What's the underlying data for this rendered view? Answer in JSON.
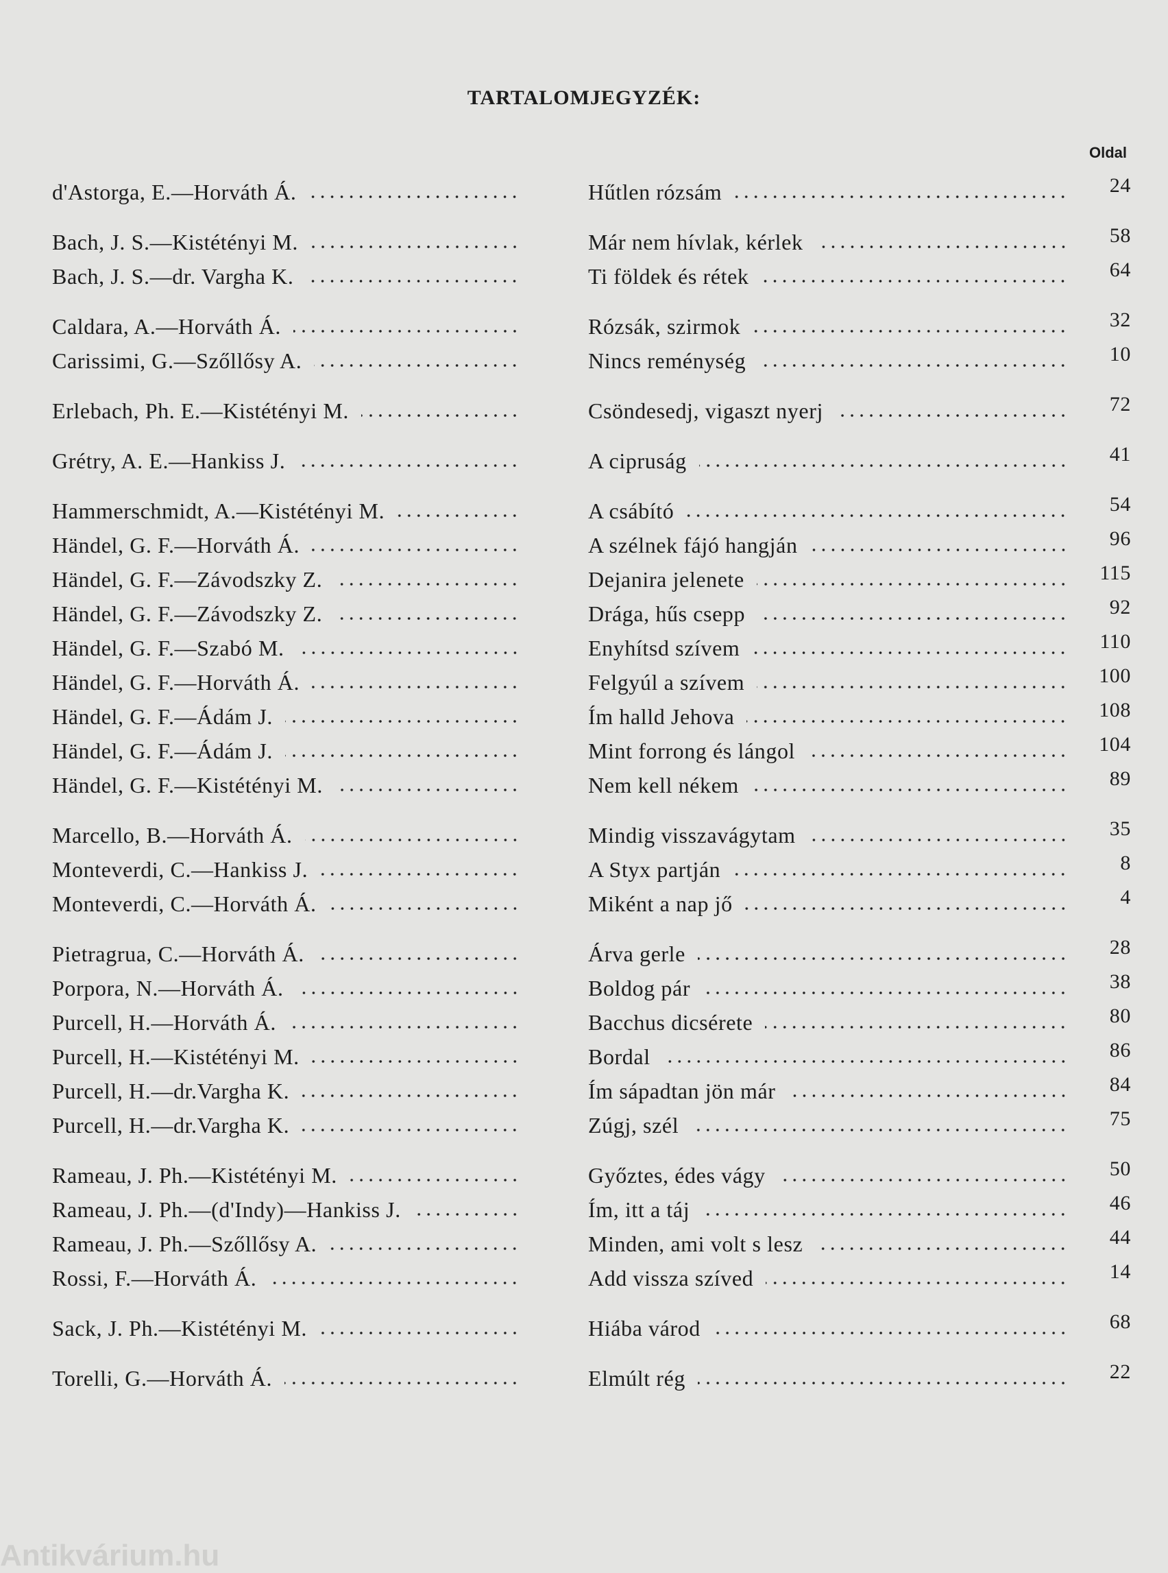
{
  "header": {
    "title": "TARTALOMJEGYZÉK:",
    "page_column": "Oldal"
  },
  "groups": [
    {
      "entries": [
        {
          "author": "d'Astorga, E.—Horváth Á.",
          "title": "Hűtlen rózsám",
          "page": "24"
        }
      ]
    },
    {
      "entries": [
        {
          "author": "Bach, J. S.—Kistétényi M.",
          "title": "Már nem hívlak, kérlek",
          "page": "58"
        },
        {
          "author": "Bach, J. S.—dr. Vargha K.",
          "title": "Ti földek és rétek",
          "page": "64"
        }
      ]
    },
    {
      "entries": [
        {
          "author": "Caldara, A.—Horváth Á.",
          "title": "Rózsák, szirmok",
          "page": "32"
        },
        {
          "author": "Carissimi, G.—Szőllősy A.",
          "title": "Nincs reménység",
          "page": "10"
        }
      ]
    },
    {
      "entries": [
        {
          "author": "Erlebach, Ph. E.—Kistétényi M.",
          "title": "Csöndesedj, vigaszt nyerj",
          "page": "72"
        }
      ]
    },
    {
      "entries": [
        {
          "author": "Grétry, A. E.—Hankiss J.",
          "title": "A cipruság",
          "page": "41"
        }
      ]
    },
    {
      "entries": [
        {
          "author": "Hammerschmidt, A.—Kistétényi M.",
          "title": "A csábító",
          "page": "54"
        },
        {
          "author": "Händel, G. F.—Horváth Á.",
          "title": "A szélnek fájó hangján",
          "page": "96"
        },
        {
          "author": "Händel, G. F.—Závodszky Z.",
          "title": "Dejanira jelenete",
          "page": "115"
        },
        {
          "author": "Händel, G. F.—Závodszky Z.",
          "title": "Drága, hűs csepp",
          "page": "92"
        },
        {
          "author": "Händel, G. F.—Szabó M.",
          "title": "Enyhítsd szívem",
          "page": "110"
        },
        {
          "author": "Händel, G. F.—Horváth Á.",
          "title": "Felgyúl a szívem",
          "page": "100"
        },
        {
          "author": "Händel, G. F.—Ádám J.",
          "title": "Ím halld Jehova",
          "page": "108"
        },
        {
          "author": "Händel, G. F.—Ádám J.",
          "title": "Mint forrong és lángol",
          "page": "104"
        },
        {
          "author": "Händel, G. F.—Kistétényi M.",
          "title": "Nem kell nékem",
          "page": "89"
        }
      ]
    },
    {
      "entries": [
        {
          "author": "Marcello, B.—Horváth Á.",
          "title": "Mindig visszavágytam",
          "page": "35"
        },
        {
          "author": "Monteverdi, C.—Hankiss J.",
          "title": "A Styx partján",
          "page": "8"
        },
        {
          "author": "Monteverdi, C.—Horváth Á.",
          "title": "Miként a nap jő",
          "page": "4"
        }
      ]
    },
    {
      "entries": [
        {
          "author": "Pietragrua, C.—Horváth Á.",
          "title": "Árva gerle",
          "page": "28"
        },
        {
          "author": "Porpora, N.—Horváth Á.",
          "title": "Boldog pár",
          "page": "38"
        },
        {
          "author": "Purcell, H.—Horváth Á.",
          "title": "Bacchus dicsérete",
          "page": "80"
        },
        {
          "author": "Purcell, H.—Kistétényi M.",
          "title": "Bordal",
          "page": "86"
        },
        {
          "author": "Purcell, H.—dr.Vargha K.",
          "title": "Ím sápadtan jön már",
          "page": "84"
        },
        {
          "author": "Purcell, H.—dr.Vargha K.",
          "title": "Zúgj, szél",
          "page": "75"
        }
      ]
    },
    {
      "entries": [
        {
          "author": "Rameau, J. Ph.—Kistétényi M.",
          "title": "Győztes, édes vágy",
          "page": "50"
        },
        {
          "author": "Rameau, J. Ph.—(d'Indy)—Hankiss J.",
          "title": "Ím, itt a táj",
          "page": "46"
        },
        {
          "author": "Rameau, J. Ph.—Szőllősy A.",
          "title": "Minden, ami volt s lesz",
          "page": "44"
        },
        {
          "author": "Rossi, F.—Horváth Á.",
          "title": "Add vissza szíved",
          "page": "14"
        }
      ]
    },
    {
      "entries": [
        {
          "author": "Sack, J. Ph.—Kistétényi M.",
          "title": "Hiába várod",
          "page": "68"
        }
      ]
    },
    {
      "entries": [
        {
          "author": "Torelli, G.—Horváth Á.",
          "title": "Elmúlt rég",
          "page": "22"
        }
      ]
    }
  ],
  "watermark": "Antikvárium.hu"
}
